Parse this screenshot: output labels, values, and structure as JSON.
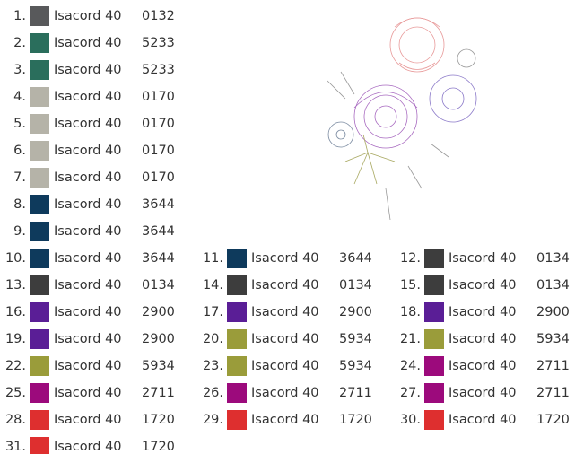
{
  "threads": [
    {
      "number": "1.",
      "color": "#58595b",
      "name": "Isacord 40",
      "code": "0132"
    },
    {
      "number": "2.",
      "color": "#2a6e5c",
      "name": "Isacord 40",
      "code": "5233"
    },
    {
      "number": "3.",
      "color": "#2a6e5c",
      "name": "Isacord 40",
      "code": "5233"
    },
    {
      "number": "4.",
      "color": "#b5b3a8",
      "name": "Isacord 40",
      "code": "0170"
    },
    {
      "number": "5.",
      "color": "#b5b3a8",
      "name": "Isacord 40",
      "code": "0170"
    },
    {
      "number": "6.",
      "color": "#b5b3a8",
      "name": "Isacord 40",
      "code": "0170"
    },
    {
      "number": "7.",
      "color": "#b5b3a8",
      "name": "Isacord 40",
      "code": "0170"
    },
    {
      "number": "8.",
      "color": "#0e3a5c",
      "name": "Isacord 40",
      "code": "3644"
    },
    {
      "number": "9.",
      "color": "#0e3a5c",
      "name": "Isacord 40",
      "code": "3644"
    },
    {
      "number": "10.",
      "color": "#0e3a5c",
      "name": "Isacord 40",
      "code": "3644"
    },
    {
      "number": "11.",
      "color": "#0e3a5c",
      "name": "Isacord 40",
      "code": "3644"
    },
    {
      "number": "12.",
      "color": "#3d3d3d",
      "name": "Isacord 40",
      "code": "0134"
    },
    {
      "number": "13.",
      "color": "#3d3d3d",
      "name": "Isacord 40",
      "code": "0134"
    },
    {
      "number": "14.",
      "color": "#3d3d3d",
      "name": "Isacord 40",
      "code": "0134"
    },
    {
      "number": "15.",
      "color": "#3d3d3d",
      "name": "Isacord 40",
      "code": "0134"
    },
    {
      "number": "16.",
      "color": "#5a1e96",
      "name": "Isacord 40",
      "code": "2900"
    },
    {
      "number": "17.",
      "color": "#5a1e96",
      "name": "Isacord 40",
      "code": "2900"
    },
    {
      "number": "18.",
      "color": "#5a1e96",
      "name": "Isacord 40",
      "code": "2900"
    },
    {
      "number": "19.",
      "color": "#5a1e96",
      "name": "Isacord 40",
      "code": "2900"
    },
    {
      "number": "20.",
      "color": "#9a9c3a",
      "name": "Isacord 40",
      "code": "5934"
    },
    {
      "number": "21.",
      "color": "#9a9c3a",
      "name": "Isacord 40",
      "code": "5934"
    },
    {
      "number": "22.",
      "color": "#9a9c3a",
      "name": "Isacord 40",
      "code": "5934"
    },
    {
      "number": "23.",
      "color": "#9a9c3a",
      "name": "Isacord 40",
      "code": "5934"
    },
    {
      "number": "24.",
      "color": "#9c0a7c",
      "name": "Isacord 40",
      "code": "2711"
    },
    {
      "number": "25.",
      "color": "#9c0a7c",
      "name": "Isacord 40",
      "code": "2711"
    },
    {
      "number": "26.",
      "color": "#9c0a7c",
      "name": "Isacord 40",
      "code": "2711"
    },
    {
      "number": "27.",
      "color": "#9c0a7c",
      "name": "Isacord 40",
      "code": "2711"
    },
    {
      "number": "28.",
      "color": "#de2f2f",
      "name": "Isacord 40",
      "code": "1720"
    },
    {
      "number": "29.",
      "color": "#de2f2f",
      "name": "Isacord 40",
      "code": "1720"
    },
    {
      "number": "30.",
      "color": "#de2f2f",
      "name": "Isacord 40",
      "code": "1720"
    },
    {
      "number": "31.",
      "color": "#de2f2f",
      "name": "Isacord 40",
      "code": "1720"
    }
  ]
}
